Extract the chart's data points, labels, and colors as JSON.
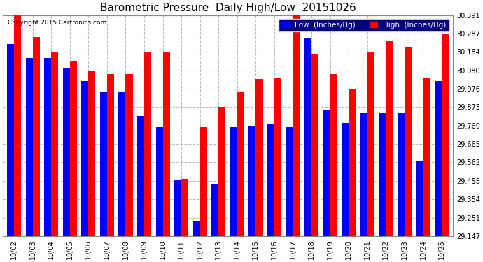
{
  "title": "Barometric Pressure  Daily High/Low  20151026",
  "copyright": "Copyright 2015 Cartronics.com",
  "legend_low": "Low  (Inches/Hg)",
  "legend_high": "High  (Inches/Hg)",
  "categories": [
    "10/02",
    "10/03",
    "10/04",
    "10/05",
    "10/06",
    "10/07",
    "10/08",
    "10/09",
    "10/10",
    "10/11",
    "10/12",
    "10/13",
    "10/14",
    "10/15",
    "10/16",
    "10/17",
    "10/18",
    "10/19",
    "10/20",
    "10/21",
    "10/22",
    "10/23",
    "10/24",
    "10/25"
  ],
  "low_values": [
    30.23,
    30.148,
    30.148,
    30.096,
    30.02,
    29.96,
    29.96,
    29.825,
    29.76,
    29.46,
    29.23,
    29.44,
    29.76,
    29.77,
    29.78,
    29.76,
    30.26,
    29.86,
    29.786,
    29.84,
    29.84,
    29.84,
    29.569,
    30.02
  ],
  "high_values": [
    30.391,
    30.268,
    30.184,
    30.13,
    30.08,
    30.06,
    30.06,
    30.184,
    30.184,
    29.47,
    29.76,
    29.873,
    29.96,
    30.03,
    30.04,
    30.391,
    30.175,
    30.06,
    29.976,
    30.184,
    30.245,
    30.212,
    30.035,
    30.287
  ],
  "ylim_min": 29.147,
  "ylim_max": 30.391,
  "yticks": [
    29.147,
    29.251,
    29.354,
    29.458,
    29.562,
    29.665,
    29.769,
    29.873,
    29.976,
    30.08,
    30.184,
    30.287,
    30.391
  ],
  "low_color": "#0000ff",
  "high_color": "#ff0000",
  "bg_color": "#ffffff",
  "plot_bg_color": "#ffffff",
  "grid_color": "#b0b0b0",
  "bar_width": 0.38,
  "title_fontsize": 11,
  "tick_fontsize": 7,
  "legend_fontsize": 7.5
}
